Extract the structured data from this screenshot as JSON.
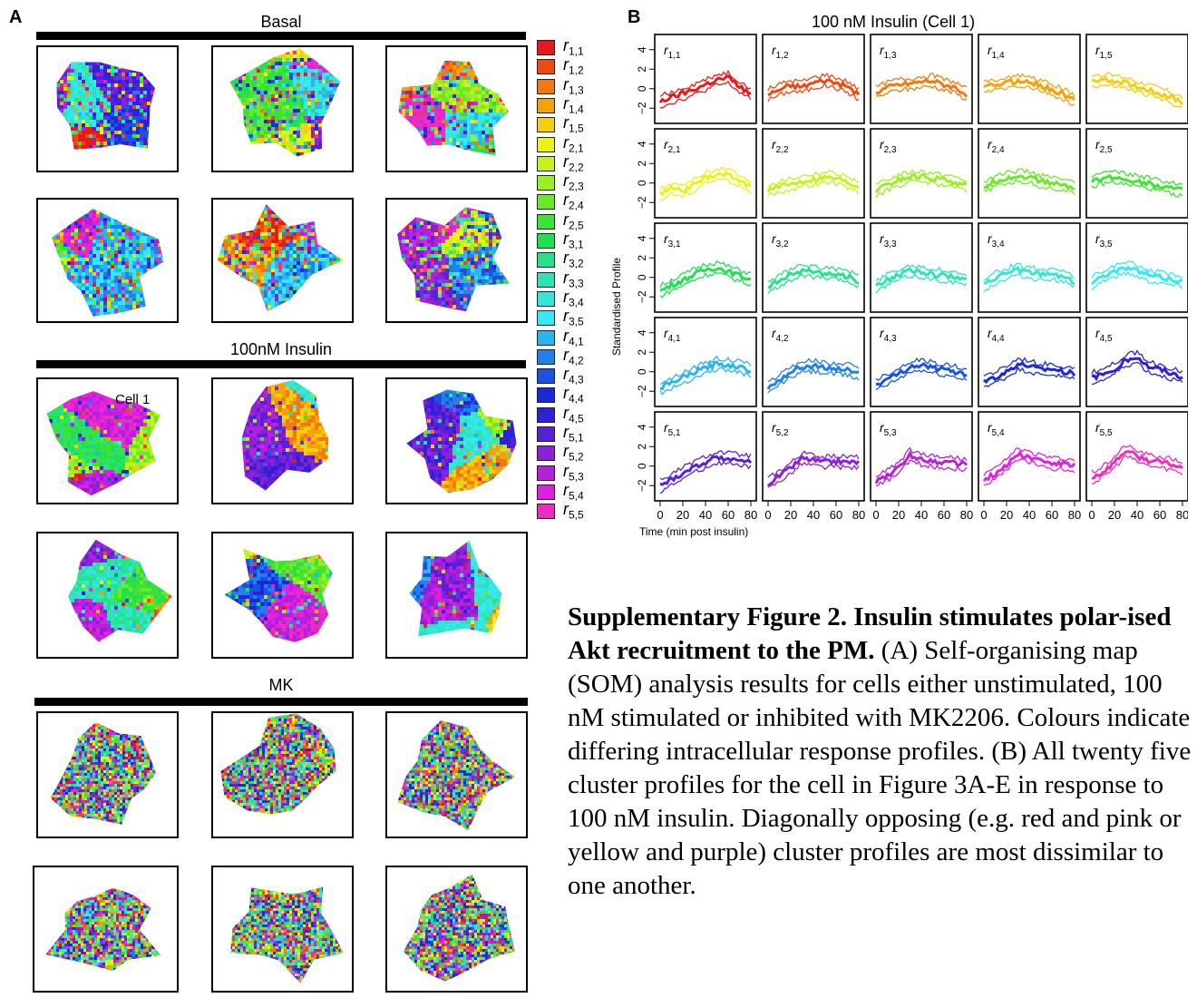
{
  "panels": {
    "a_letter": "A",
    "b_letter": "B"
  },
  "panel_a": {
    "sections": [
      {
        "title": "Basal",
        "style": "mixed"
      },
      {
        "title": "100nM Insulin",
        "style": "blob",
        "cell_label": "Cell 1"
      },
      {
        "title": "MK",
        "style": "noise"
      }
    ],
    "legend": [
      {
        "r": "1",
        "c": "1",
        "color": "#e61a1a"
      },
      {
        "r": "1",
        "c": "2",
        "color": "#ee4a10"
      },
      {
        "r": "1",
        "c": "3",
        "color": "#f2790c"
      },
      {
        "r": "1",
        "c": "4",
        "color": "#f4a20c"
      },
      {
        "r": "1",
        "c": "5",
        "color": "#f7cd10"
      },
      {
        "r": "2",
        "c": "1",
        "color": "#eaf21a"
      },
      {
        "r": "2",
        "c": "2",
        "color": "#c6f21c"
      },
      {
        "r": "2",
        "c": "3",
        "color": "#9aee22"
      },
      {
        "r": "2",
        "c": "4",
        "color": "#6ce828"
      },
      {
        "r": "2",
        "c": "5",
        "color": "#3ee234"
      },
      {
        "r": "3",
        "c": "1",
        "color": "#22df52"
      },
      {
        "r": "3",
        "c": "2",
        "color": "#26e08a"
      },
      {
        "r": "3",
        "c": "3",
        "color": "#2ee2b6"
      },
      {
        "r": "3",
        "c": "4",
        "color": "#34e6d8"
      },
      {
        "r": "3",
        "c": "5",
        "color": "#36e8f6"
      },
      {
        "r": "4",
        "c": "1",
        "color": "#2cb4f0"
      },
      {
        "r": "4",
        "c": "2",
        "color": "#2280ec"
      },
      {
        "r": "4",
        "c": "3",
        "color": "#1a52e4"
      },
      {
        "r": "4",
        "c": "4",
        "color": "#1a2ad8"
      },
      {
        "r": "4",
        "c": "5",
        "color": "#3020d6"
      },
      {
        "r": "5",
        "c": "1",
        "color": "#5a20d8"
      },
      {
        "r": "5",
        "c": "2",
        "color": "#8a20d8"
      },
      {
        "r": "5",
        "c": "3",
        "color": "#b420dc"
      },
      {
        "r": "5",
        "c": "4",
        "color": "#e020e0"
      },
      {
        "r": "5",
        "c": "5",
        "color": "#ee2cc0"
      }
    ]
  },
  "panel_b": {
    "title": "100 nM Insulin (Cell 1)",
    "ylabel": "Standardised Profile",
    "xlabel": "Time (min post insulin)",
    "y_ticks": [
      "4",
      "2",
      "0",
      "−2"
    ],
    "x_ticks": [
      "0",
      "20",
      "40",
      "60",
      "80"
    ]
  },
  "caption": {
    "title": "Supplementary Figure 2. Insulin stimulates polar-ised Akt recruitment to the PM.",
    "text": " (A) Self-organising map (SOM) analysis results for cells either unstimulated, 100 nM stimulated or inhibited with MK2206. Colours indicate differing intracellular response profiles. (B) All twenty five cluster profiles for the cell in Figure 3A-E in response to 100 nM insulin. Diagonally opposing (e.g. red and pink or yellow and purple) cluster profiles are most dissimilar to one another."
  },
  "chart_data": {
    "type": "line",
    "title": "100 nM Insulin (Cell 1)",
    "xlabel": "Time (min post insulin)",
    "ylabel": "Standardised Profile",
    "xlim": [
      0,
      80
    ],
    "ylim": [
      -3,
      5
    ],
    "x": [
      0,
      10,
      20,
      30,
      40,
      50,
      60,
      70,
      80
    ],
    "series": [
      {
        "name": "r1,1",
        "color": "#e61a1a",
        "values": [
          -1.3,
          -0.9,
          -0.5,
          -0.1,
          0.4,
          0.9,
          1.1,
          0.2,
          -0.6
        ]
      },
      {
        "name": "r1,2",
        "color": "#ee4a10",
        "values": [
          -0.6,
          -0.1,
          0.3,
          0.2,
          0.6,
          0.9,
          0.6,
          0.2,
          -0.6
        ]
      },
      {
        "name": "r1,3",
        "color": "#f2790c",
        "values": [
          -0.4,
          0.1,
          0.4,
          0.5,
          0.7,
          0.8,
          0.4,
          0.1,
          -0.6
        ]
      },
      {
        "name": "r1,4",
        "color": "#f4a20c",
        "values": [
          0.1,
          0.4,
          0.6,
          0.8,
          0.7,
          0.3,
          -0.1,
          -0.6,
          -1.2
        ]
      },
      {
        "name": "r1,5",
        "color": "#f7cd10",
        "values": [
          0.8,
          0.9,
          0.8,
          0.6,
          0.2,
          -0.1,
          -0.5,
          -0.9,
          -1.4
        ]
      },
      {
        "name": "r2,1",
        "color": "#eaf21a",
        "values": [
          -1.1,
          -0.6,
          -0.8,
          -0.2,
          0.5,
          0.9,
          0.8,
          0.3,
          -0.4
        ]
      },
      {
        "name": "r2,2",
        "color": "#c6f21c",
        "values": [
          -0.7,
          -0.4,
          -0.1,
          0.2,
          0.4,
          0.6,
          0.5,
          0.1,
          -0.4
        ]
      },
      {
        "name": "r2,3",
        "color": "#9aee22",
        "values": [
          -0.8,
          -0.2,
          0.3,
          0.6,
          0.7,
          0.5,
          0.3,
          0.1,
          -0.3
        ]
      },
      {
        "name": "r2,4",
        "color": "#6ce828",
        "values": [
          -0.4,
          0.2,
          0.5,
          0.7,
          0.6,
          0.2,
          0.0,
          -0.2,
          -0.6
        ]
      },
      {
        "name": "r2,5",
        "color": "#3ee234",
        "values": [
          0.1,
          0.5,
          0.6,
          0.4,
          0.2,
          0.0,
          -0.3,
          -0.5,
          -0.8
        ]
      },
      {
        "name": "r3,1",
        "color": "#22df52",
        "values": [
          -1.4,
          -0.8,
          -0.3,
          0.3,
          0.8,
          1.0,
          0.6,
          0.2,
          -0.2
        ]
      },
      {
        "name": "r3,2",
        "color": "#26e08a",
        "values": [
          -1.1,
          -0.3,
          0.2,
          0.7,
          0.6,
          0.4,
          0.3,
          0.1,
          -0.4
        ]
      },
      {
        "name": "r3,3",
        "color": "#2ee2b6",
        "values": [
          -1.0,
          -0.2,
          0.3,
          0.7,
          0.6,
          0.3,
          0.2,
          0.0,
          -0.2
        ]
      },
      {
        "name": "r3,4",
        "color": "#34e6d8",
        "values": [
          -0.8,
          -0.1,
          0.4,
          0.8,
          0.5,
          0.3,
          0.4,
          0.1,
          -0.5
        ]
      },
      {
        "name": "r3,5",
        "color": "#36e8f6",
        "values": [
          -0.5,
          0.2,
          0.6,
          1.0,
          0.7,
          0.2,
          0.0,
          -0.2,
          -0.4
        ]
      },
      {
        "name": "r4,1",
        "color": "#2cb4f0",
        "values": [
          -1.6,
          -1.2,
          -0.6,
          -0.1,
          0.4,
          0.8,
          0.7,
          0.5,
          0.1
        ]
      },
      {
        "name": "r4,2",
        "color": "#2280ec",
        "values": [
          -1.7,
          -0.8,
          0.0,
          0.5,
          0.6,
          0.4,
          0.3,
          0.2,
          -0.2
        ]
      },
      {
        "name": "r4,3",
        "color": "#1a52e4",
        "values": [
          -1.3,
          -0.8,
          -0.2,
          0.5,
          0.7,
          0.4,
          0.2,
          0.0,
          -0.3
        ]
      },
      {
        "name": "r4,4",
        "color": "#1a2ad8",
        "values": [
          -0.9,
          -0.6,
          0.0,
          0.8,
          0.6,
          0.2,
          0.3,
          0.0,
          -0.2
        ]
      },
      {
        "name": "r4,5",
        "color": "#3020d6",
        "values": [
          -0.6,
          -0.3,
          0.3,
          1.2,
          1.5,
          0.5,
          0.2,
          -0.2,
          -0.6
        ]
      },
      {
        "name": "r5,1",
        "color": "#5a20d8",
        "values": [
          -2.0,
          -1.4,
          -0.7,
          -0.1,
          0.4,
          0.9,
          0.8,
          0.6,
          0.5
        ]
      },
      {
        "name": "r5,2",
        "color": "#8a20d8",
        "values": [
          -1.8,
          -1.0,
          -0.2,
          0.8,
          0.6,
          0.4,
          0.5,
          0.4,
          0.4
        ]
      },
      {
        "name": "r5,3",
        "color": "#b420dc",
        "values": [
          -1.6,
          -0.9,
          -0.2,
          1.1,
          0.7,
          0.5,
          0.4,
          0.3,
          0.2
        ]
      },
      {
        "name": "r5,4",
        "color": "#e020e0",
        "values": [
          -1.4,
          -0.8,
          0.1,
          1.3,
          0.9,
          0.6,
          0.3,
          0.2,
          0.1
        ]
      },
      {
        "name": "r5,5",
        "color": "#ee2cc0",
        "values": [
          -1.2,
          -0.6,
          0.4,
          1.6,
          1.0,
          0.6,
          0.4,
          0.2,
          -0.2
        ]
      }
    ]
  }
}
